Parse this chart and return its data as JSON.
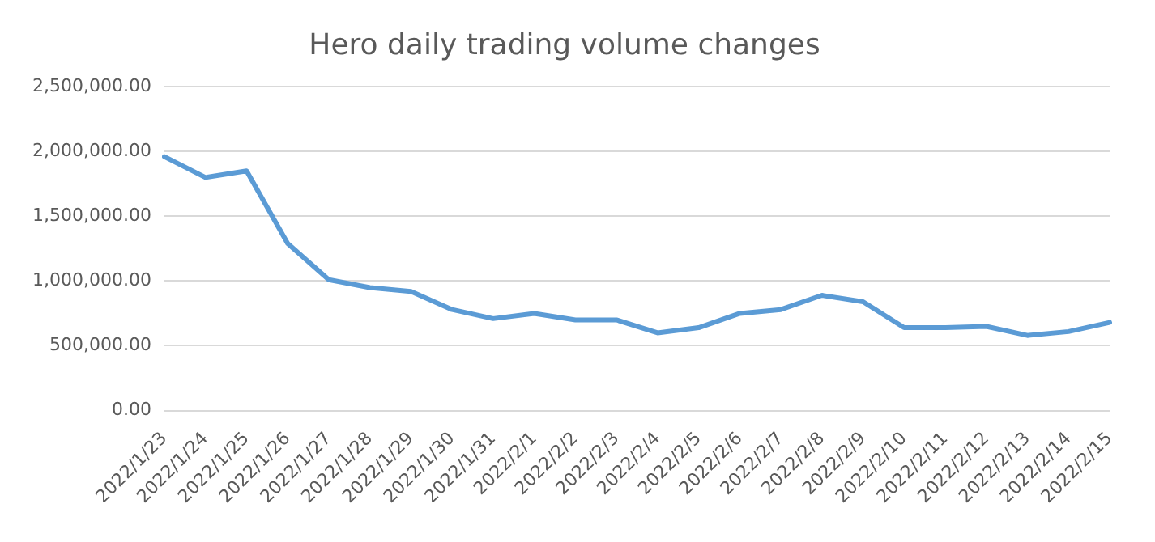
{
  "chart_data": {
    "type": "line",
    "title": "Hero daily trading volume changes",
    "categories": [
      "2022/1/23",
      "2022/1/24",
      "2022/1/25",
      "2022/1/26",
      "2022/1/27",
      "2022/1/28",
      "2022/1/29",
      "2022/1/30",
      "2022/1/31",
      "2022/2/1",
      "2022/2/2",
      "2022/2/3",
      "2022/2/4",
      "2022/2/5",
      "2022/2/6",
      "2022/2/7",
      "2022/2/8",
      "2022/2/9",
      "2022/2/10",
      "2022/2/11",
      "2022/2/12",
      "2022/2/13",
      "2022/2/14",
      "2022/2/15"
    ],
    "series": [
      {
        "color": "#5b9bd5",
        "values": [
          1960000,
          1800000,
          1850000,
          1290000,
          1010000,
          950000,
          920000,
          780000,
          710000,
          750000,
          700000,
          700000,
          600000,
          640000,
          750000,
          780000,
          890000,
          840000,
          640000,
          640000,
          650000,
          580000,
          610000,
          680000
        ]
      }
    ],
    "ylim": [
      0,
      2500000
    ],
    "yticks": [
      {
        "value": 0,
        "label": "0.00"
      },
      {
        "value": 500000,
        "label": "500,000.00"
      },
      {
        "value": 1000000,
        "label": "1,000,000.00"
      },
      {
        "value": 1500000,
        "label": "1,500,000.00"
      },
      {
        "value": 2000000,
        "label": "2,000,000.00"
      },
      {
        "value": 2500000,
        "label": "2,500,000.00"
      }
    ],
    "grid": "y",
    "marker": "none",
    "line_style": "solid",
    "legend": false
  }
}
